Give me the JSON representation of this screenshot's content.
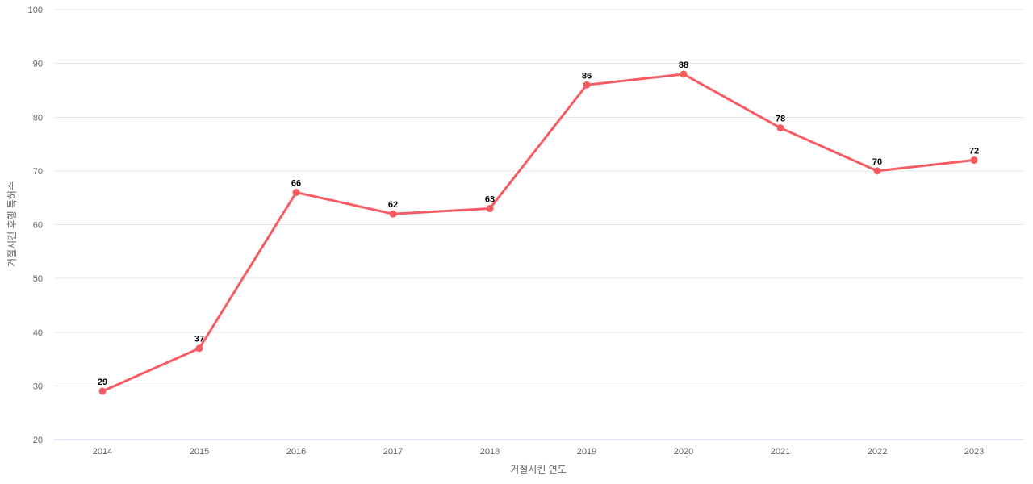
{
  "chart_data": {
    "type": "line",
    "title": "",
    "categories": [
      "2014",
      "2015",
      "2016",
      "2017",
      "2018",
      "2019",
      "2020",
      "2021",
      "2022",
      "2023"
    ],
    "values": [
      29,
      37,
      66,
      62,
      63,
      86,
      88,
      78,
      70,
      72
    ],
    "data_labels": [
      "29",
      "37",
      "66",
      "62",
      "63",
      "86",
      "88",
      "78",
      "70",
      "72"
    ],
    "xlabel": "거절시킨 연도",
    "ylabel": "거절시킨 후행 특허수",
    "ylim": [
      20,
      100
    ],
    "yticks": [
      20,
      30,
      40,
      50,
      60,
      70,
      80,
      90,
      100
    ],
    "grid": true,
    "legend": false,
    "colors": {
      "series_line": "#f65c62",
      "marker_fill": "#f65c62",
      "gridline": "#e6e6e6",
      "axis_line": "#ccd6eb",
      "tick_label": "#666666",
      "axis_title": "#666666",
      "data_label": "#000000",
      "background": "#ffffff"
    }
  }
}
